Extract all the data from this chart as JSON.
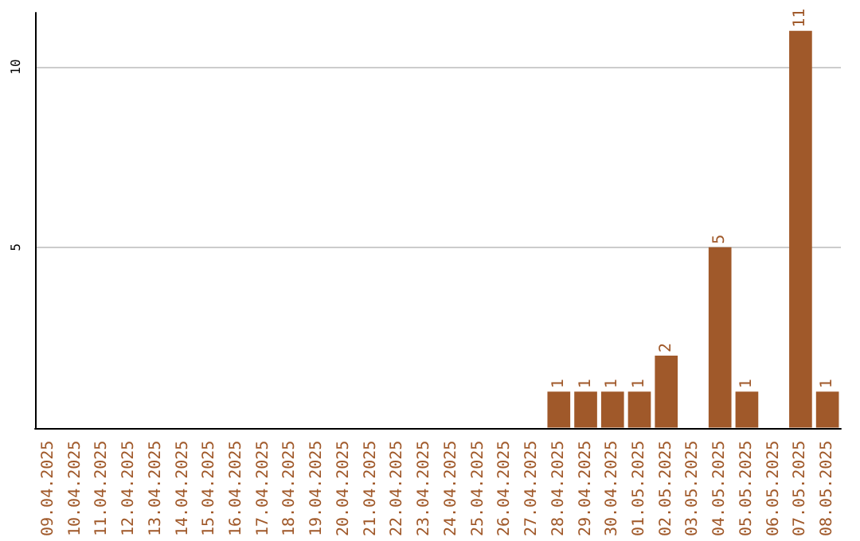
{
  "chart_data": {
    "type": "bar",
    "categories": [
      "09.04.2025",
      "10.04.2025",
      "11.04.2025",
      "12.04.2025",
      "13.04.2025",
      "14.04.2025",
      "15.04.2025",
      "16.04.2025",
      "17.04.2025",
      "18.04.2025",
      "19.04.2025",
      "20.04.2025",
      "21.04.2025",
      "22.04.2025",
      "23.04.2025",
      "24.04.2025",
      "25.04.2025",
      "26.04.2025",
      "27.04.2025",
      "28.04.2025",
      "29.04.2025",
      "30.04.2025",
      "01.05.2025",
      "02.05.2025",
      "03.05.2025",
      "04.05.2025",
      "05.05.2025",
      "06.05.2025",
      "07.05.2025",
      "08.05.2025"
    ],
    "values": [
      0,
      0,
      0,
      0,
      0,
      0,
      0,
      0,
      0,
      0,
      0,
      0,
      0,
      0,
      0,
      0,
      0,
      0,
      0,
      1,
      1,
      1,
      1,
      2,
      0,
      5,
      1,
      0,
      11,
      1
    ],
    "value_labels": [
      null,
      null,
      null,
      null,
      null,
      null,
      null,
      null,
      null,
      null,
      null,
      null,
      null,
      null,
      null,
      null,
      null,
      null,
      null,
      "1",
      "1",
      "1",
      "1",
      "2",
      null,
      "5",
      "1",
      null,
      "11",
      "1"
    ],
    "color": "#a0592a",
    "ylim": [
      0,
      11.5
    ],
    "yticks": [
      5,
      10
    ],
    "grid": "y"
  }
}
